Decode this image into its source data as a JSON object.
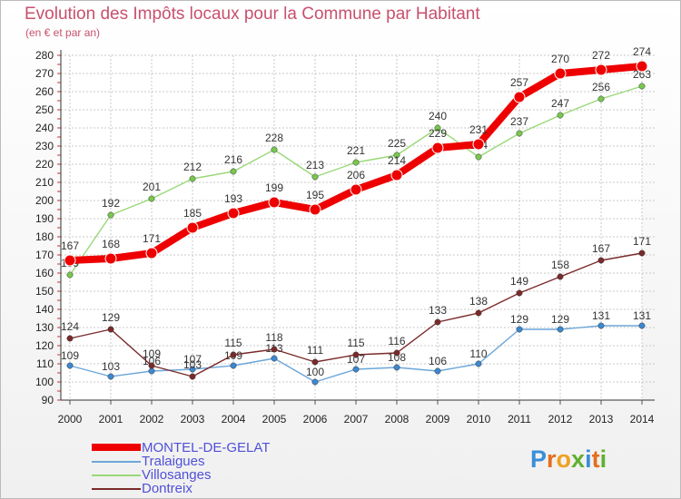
{
  "title": "Evolution des Impôts locaux pour la Commune par Habitant",
  "subtitle": "(en € et par an)",
  "logo": {
    "text": "Proxiti",
    "colors": [
      "#3a8fd8",
      "#e46f1c",
      "#f0a020",
      "#60b030",
      "#3a8fd8",
      "#e46f1c",
      "#60b030"
    ]
  },
  "chart_data": {
    "type": "line",
    "x": [
      2000,
      2001,
      2002,
      2003,
      2004,
      2005,
      2006,
      2007,
      2008,
      2009,
      2010,
      2011,
      2012,
      2013,
      2014
    ],
    "ylim": [
      90,
      280
    ],
    "yticks": [
      90,
      100,
      110,
      120,
      130,
      140,
      150,
      160,
      170,
      180,
      190,
      200,
      210,
      220,
      230,
      240,
      250,
      260,
      270,
      280
    ],
    "grid": true,
    "legend_position": "bottom-left",
    "series": [
      {
        "name": "Villosanges",
        "color": "#9ad878",
        "marker": "#78c850",
        "values": [
          159,
          192,
          201,
          212,
          216,
          228,
          213,
          221,
          225,
          240,
          224,
          237,
          247,
          256,
          263
        ]
      },
      {
        "name": "Tralaigues",
        "color": "#6ca6d8",
        "marker": "#3d88d0",
        "values": [
          109,
          103,
          106,
          107,
          109,
          113,
          100,
          107,
          108,
          106,
          110,
          129,
          129,
          131,
          131
        ]
      },
      {
        "name": "Dontreix",
        "color": "#7a2a2a",
        "marker": "#7a2a2a",
        "values": [
          124,
          129,
          109,
          103,
          115,
          118,
          111,
          115,
          116,
          133,
          138,
          149,
          158,
          167,
          171
        ]
      },
      {
        "name": "MONTEL-DE-GELAT",
        "color": "#ee0000",
        "marker": "#ee0000",
        "values": [
          167,
          168,
          171,
          185,
          193,
          199,
          195,
          206,
          214,
          229,
          231,
          257,
          270,
          272,
          274
        ]
      }
    ]
  }
}
